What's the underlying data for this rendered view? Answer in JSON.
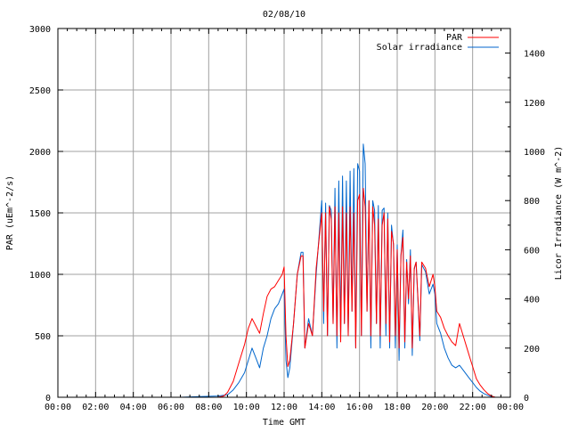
{
  "chart_data": {
    "type": "line",
    "title": "02/08/10",
    "xlabel": "Time GMT",
    "ylabel_left": "PAR (uEm^-2/s)",
    "ylabel_right": "Licor Irradiance (W m^-2)",
    "x_ticks": [
      "00:00",
      "02:00",
      "04:00",
      "06:00",
      "08:00",
      "10:00",
      "12:00",
      "14:00",
      "16:00",
      "18:00",
      "20:00",
      "22:00",
      "00:00"
    ],
    "y_left_ticks": [
      "0",
      "500",
      "1000",
      "1500",
      "2000",
      "2500",
      "3000"
    ],
    "y_right_ticks": [
      "0",
      "200",
      "400",
      "600",
      "800",
      "1000",
      "1200",
      "1400"
    ],
    "xlim_hours": [
      0,
      24
    ],
    "ylim_left": [
      0,
      3000
    ],
    "ylim_right": [
      0,
      1500
    ],
    "grid": true,
    "legend_position": "top-right",
    "series": [
      {
        "name": "PAR",
        "axis": "left",
        "color": "#ff0000",
        "points": [
          [
            0,
            0
          ],
          [
            8.5,
            0
          ],
          [
            8.8,
            10
          ],
          [
            9.0,
            40
          ],
          [
            9.3,
            130
          ],
          [
            9.6,
            280
          ],
          [
            9.9,
            430
          ],
          [
            10.1,
            560
          ],
          [
            10.3,
            640
          ],
          [
            10.5,
            580
          ],
          [
            10.7,
            520
          ],
          [
            10.9,
            680
          ],
          [
            11.1,
            820
          ],
          [
            11.3,
            880
          ],
          [
            11.5,
            900
          ],
          [
            11.7,
            950
          ],
          [
            11.9,
            1000
          ],
          [
            12.0,
            1060
          ],
          [
            12.1,
            500
          ],
          [
            12.2,
            250
          ],
          [
            12.3,
            300
          ],
          [
            12.5,
            600
          ],
          [
            12.7,
            1000
          ],
          [
            12.9,
            1150
          ],
          [
            13.0,
            1150
          ],
          [
            13.1,
            400
          ],
          [
            13.3,
            600
          ],
          [
            13.5,
            500
          ],
          [
            13.7,
            1050
          ],
          [
            13.9,
            1350
          ],
          [
            14.0,
            1500
          ],
          [
            14.1,
            700
          ],
          [
            14.2,
            1500
          ],
          [
            14.3,
            500
          ],
          [
            14.4,
            1550
          ],
          [
            14.5,
            1450
          ],
          [
            14.6,
            600
          ],
          [
            14.7,
            1550
          ],
          [
            14.8,
            500
          ],
          [
            14.9,
            1500
          ],
          [
            15.0,
            450
          ],
          [
            15.1,
            1550
          ],
          [
            15.2,
            600
          ],
          [
            15.3,
            1500
          ],
          [
            15.4,
            500
          ],
          [
            15.5,
            1550
          ],
          [
            15.6,
            700
          ],
          [
            15.7,
            1500
          ],
          [
            15.8,
            400
          ],
          [
            15.9,
            1600
          ],
          [
            16.0,
            1650
          ],
          [
            16.1,
            500
          ],
          [
            16.2,
            1700
          ],
          [
            16.3,
            1550
          ],
          [
            16.4,
            700
          ],
          [
            16.5,
            1600
          ],
          [
            16.6,
            500
          ],
          [
            16.7,
            1550
          ],
          [
            16.8,
            1400
          ],
          [
            16.9,
            600
          ],
          [
            17.0,
            1450
          ],
          [
            17.1,
            500
          ],
          [
            17.2,
            1400
          ],
          [
            17.3,
            1500
          ],
          [
            17.4,
            600
          ],
          [
            17.5,
            1450
          ],
          [
            17.6,
            450
          ],
          [
            17.7,
            1350
          ],
          [
            17.8,
            1250
          ],
          [
            17.9,
            500
          ],
          [
            18.0,
            1200
          ],
          [
            18.1,
            400
          ],
          [
            18.2,
            1150
          ],
          [
            18.3,
            1300
          ],
          [
            18.4,
            450
          ],
          [
            18.5,
            1100
          ],
          [
            18.6,
            800
          ],
          [
            18.7,
            1150
          ],
          [
            18.8,
            400
          ],
          [
            18.9,
            1050
          ],
          [
            19.0,
            1100
          ],
          [
            19.2,
            500
          ],
          [
            19.3,
            1100
          ],
          [
            19.5,
            1050
          ],
          [
            19.7,
            900
          ],
          [
            19.9,
            1000
          ],
          [
            20.0,
            900
          ],
          [
            20.1,
            700
          ],
          [
            20.3,
            650
          ],
          [
            20.5,
            560
          ],
          [
            20.7,
            500
          ],
          [
            20.9,
            450
          ],
          [
            21.1,
            420
          ],
          [
            21.3,
            600
          ],
          [
            21.5,
            500
          ],
          [
            21.7,
            400
          ],
          [
            21.9,
            300
          ],
          [
            22.0,
            250
          ],
          [
            22.2,
            150
          ],
          [
            22.4,
            100
          ],
          [
            22.6,
            60
          ],
          [
            22.8,
            30
          ],
          [
            23.0,
            10
          ],
          [
            23.2,
            0
          ],
          [
            24,
            0
          ]
        ]
      },
      {
        "name": "Solar irradiance",
        "axis": "right",
        "color": "#0066cc",
        "points": [
          [
            0,
            0
          ],
          [
            6.5,
            0
          ],
          [
            7.5,
            3
          ],
          [
            8.5,
            5
          ],
          [
            9.0,
            10
          ],
          [
            9.3,
            30
          ],
          [
            9.6,
            60
          ],
          [
            9.9,
            100
          ],
          [
            10.1,
            150
          ],
          [
            10.3,
            200
          ],
          [
            10.5,
            160
          ],
          [
            10.7,
            120
          ],
          [
            10.9,
            200
          ],
          [
            11.1,
            250
          ],
          [
            11.3,
            320
          ],
          [
            11.5,
            360
          ],
          [
            11.7,
            380
          ],
          [
            11.9,
            420
          ],
          [
            12.0,
            440
          ],
          [
            12.1,
            150
          ],
          [
            12.2,
            80
          ],
          [
            12.3,
            120
          ],
          [
            12.5,
            300
          ],
          [
            12.7,
            500
          ],
          [
            12.9,
            590
          ],
          [
            13.0,
            590
          ],
          [
            13.1,
            200
          ],
          [
            13.3,
            320
          ],
          [
            13.5,
            250
          ],
          [
            13.7,
            500
          ],
          [
            13.9,
            700
          ],
          [
            14.0,
            800
          ],
          [
            14.1,
            300
          ],
          [
            14.2,
            790
          ],
          [
            14.3,
            250
          ],
          [
            14.4,
            780
          ],
          [
            14.5,
            760
          ],
          [
            14.6,
            300
          ],
          [
            14.7,
            850
          ],
          [
            14.8,
            200
          ],
          [
            14.9,
            880
          ],
          [
            15.0,
            250
          ],
          [
            15.1,
            900
          ],
          [
            15.2,
            300
          ],
          [
            15.3,
            880
          ],
          [
            15.4,
            250
          ],
          [
            15.5,
            920
          ],
          [
            15.6,
            350
          ],
          [
            15.7,
            930
          ],
          [
            15.8,
            200
          ],
          [
            15.9,
            950
          ],
          [
            16.0,
            920
          ],
          [
            16.1,
            250
          ],
          [
            16.2,
            1030
          ],
          [
            16.3,
            950
          ],
          [
            16.4,
            350
          ],
          [
            16.5,
            800
          ],
          [
            16.6,
            200
          ],
          [
            16.7,
            800
          ],
          [
            16.8,
            760
          ],
          [
            16.9,
            300
          ],
          [
            17.0,
            780
          ],
          [
            17.1,
            200
          ],
          [
            17.2,
            760
          ],
          [
            17.3,
            770
          ],
          [
            17.4,
            250
          ],
          [
            17.5,
            750
          ],
          [
            17.6,
            200
          ],
          [
            17.7,
            700
          ],
          [
            17.8,
            620
          ],
          [
            17.9,
            200
          ],
          [
            18.0,
            620
          ],
          [
            18.1,
            150
          ],
          [
            18.2,
            580
          ],
          [
            18.3,
            680
          ],
          [
            18.4,
            200
          ],
          [
            18.5,
            560
          ],
          [
            18.6,
            380
          ],
          [
            18.7,
            600
          ],
          [
            18.8,
            170
          ],
          [
            18.9,
            520
          ],
          [
            19.0,
            550
          ],
          [
            19.2,
            230
          ],
          [
            19.3,
            540
          ],
          [
            19.5,
            510
          ],
          [
            19.7,
            420
          ],
          [
            19.9,
            460
          ],
          [
            20.0,
            420
          ],
          [
            20.1,
            300
          ],
          [
            20.3,
            260
          ],
          [
            20.5,
            200
          ],
          [
            20.7,
            160
          ],
          [
            20.9,
            130
          ],
          [
            21.1,
            120
          ],
          [
            21.3,
            130
          ],
          [
            21.5,
            110
          ],
          [
            21.7,
            90
          ],
          [
            21.9,
            70
          ],
          [
            22.0,
            60
          ],
          [
            22.2,
            40
          ],
          [
            22.4,
            25
          ],
          [
            22.6,
            15
          ],
          [
            22.8,
            8
          ],
          [
            23.0,
            3
          ],
          [
            23.2,
            0
          ],
          [
            24,
            0
          ]
        ]
      }
    ]
  }
}
